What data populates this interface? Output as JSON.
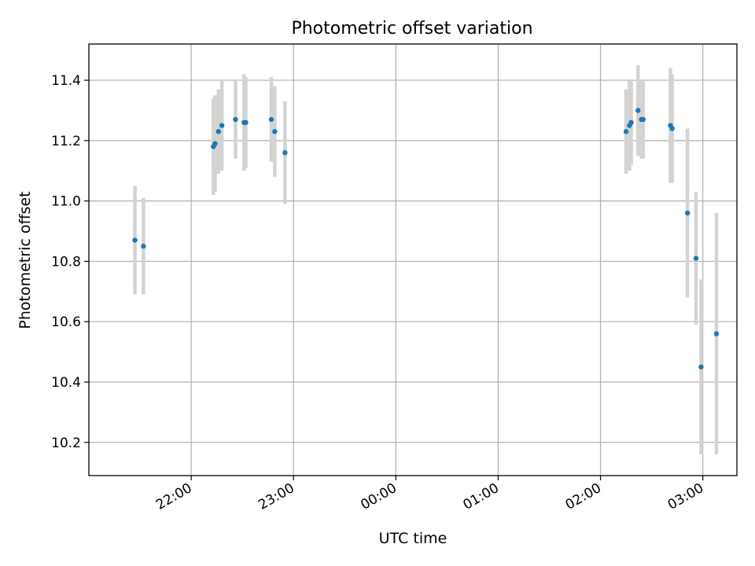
{
  "chart_data": {
    "type": "scatter",
    "title": "Photometric offset variation",
    "xlabel": "UTC time",
    "ylabel": "Photometric offset",
    "x_axis_type": "time",
    "xlim": [
      "21:00",
      "03:20"
    ],
    "ylim": [
      10.09,
      11.52
    ],
    "grid": true,
    "x_ticks": [
      "22:00",
      "23:00",
      "00:00",
      "01:00",
      "02:00",
      "03:00"
    ],
    "y_ticks": [
      10.2,
      10.4,
      10.6,
      10.8,
      11.0,
      11.2,
      11.4
    ],
    "marker_color": "#1f77b4",
    "errorbar_color": "#d3d3d3",
    "points": [
      {
        "x": "21:27",
        "y": 10.87,
        "yerr": 0.18
      },
      {
        "x": "21:32",
        "y": 10.85,
        "yerr": 0.16
      },
      {
        "x": "22:13",
        "y": 11.18,
        "yerr": 0.16
      },
      {
        "x": "22:14",
        "y": 11.19,
        "yerr": 0.16
      },
      {
        "x": "22:16",
        "y": 11.23,
        "yerr": 0.14
      },
      {
        "x": "22:18",
        "y": 11.25,
        "yerr": 0.15
      },
      {
        "x": "22:26",
        "y": 11.27,
        "yerr": 0.13
      },
      {
        "x": "22:31",
        "y": 11.26,
        "yerr": 0.16
      },
      {
        "x": "22:32",
        "y": 11.26,
        "yerr": 0.15
      },
      {
        "x": "22:47",
        "y": 11.27,
        "yerr": 0.14
      },
      {
        "x": "22:49",
        "y": 11.23,
        "yerr": 0.15
      },
      {
        "x": "22:55",
        "y": 11.16,
        "yerr": 0.17
      },
      {
        "x": "02:15",
        "y": 11.23,
        "yerr": 0.14
      },
      {
        "x": "02:17",
        "y": 11.25,
        "yerr": 0.15
      },
      {
        "x": "02:18",
        "y": 11.26,
        "yerr": 0.14
      },
      {
        "x": "02:22",
        "y": 11.3,
        "yerr": 0.15
      },
      {
        "x": "02:24",
        "y": 11.27,
        "yerr": 0.13
      },
      {
        "x": "02:25",
        "y": 11.27,
        "yerr": 0.13
      },
      {
        "x": "02:41",
        "y": 11.25,
        "yerr": 0.19
      },
      {
        "x": "02:42",
        "y": 11.24,
        "yerr": 0.18
      },
      {
        "x": "02:51",
        "y": 10.96,
        "yerr": 0.28
      },
      {
        "x": "02:56",
        "y": 10.81,
        "yerr": 0.22
      },
      {
        "x": "02:59",
        "y": 10.45,
        "yerr": 0.29
      },
      {
        "x": "03:08",
        "y": 10.56,
        "yerr": 0.4
      }
    ]
  }
}
